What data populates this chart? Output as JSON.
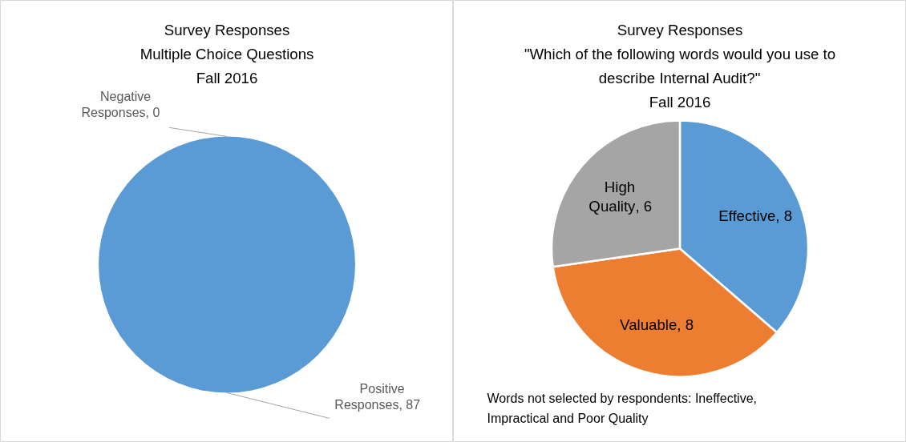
{
  "chart_data": [
    {
      "type": "pie",
      "title": "Survey Responses\nMultiple Choice Questions\nFall 2016",
      "categories": [
        "Negative Responses",
        "Positive Responses"
      ],
      "values": [
        0,
        87
      ],
      "colors": [
        "#ed7d31",
        "#5b9bd5"
      ],
      "value_labels": [
        ", 0",
        ", 87"
      ],
      "legend": false
    },
    {
      "type": "pie",
      "title": "Survey Responses\n\"Which of the following words would you use to\ndescribe Internal Audit?\"\nFall 2016",
      "categories": [
        "Effective",
        "Valuable",
        "High Quality"
      ],
      "values": [
        8,
        8,
        6
      ],
      "colors": [
        "#5b9bd5",
        "#ed7d31",
        "#a5a5a5"
      ],
      "value_labels": [
        ", 8",
        ", 8",
        ", 6"
      ],
      "legend": false,
      "annotations": [
        "Words not selected by respondents:  Ineffective, Impractical and Poor Quality"
      ]
    }
  ]
}
